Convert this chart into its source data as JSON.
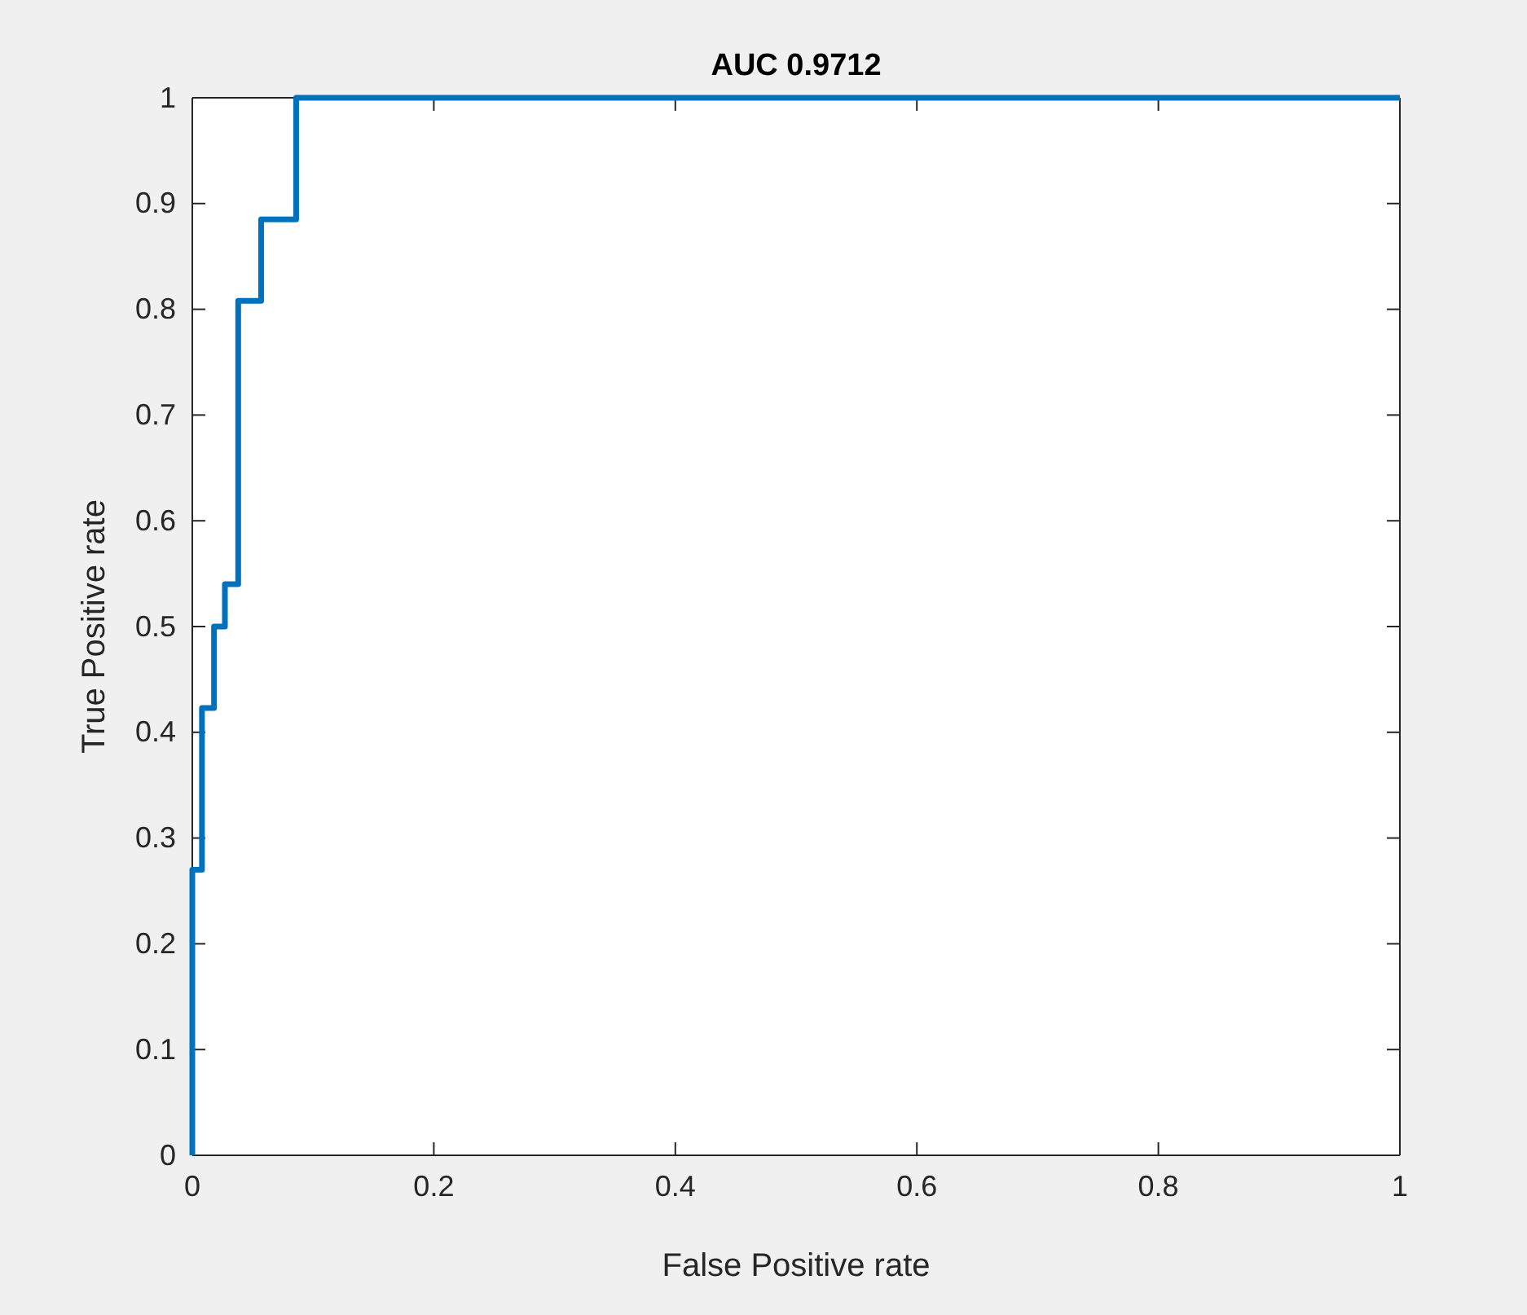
{
  "chart_data": {
    "type": "line",
    "title": "AUC 0.9712",
    "xlabel": "False Positive rate",
    "ylabel": "True Positive rate",
    "x": [
      0,
      0,
      0.008,
      0.008,
      0.018,
      0.018,
      0.027,
      0.027,
      0.038,
      0.038,
      0.057,
      0.057,
      0.086,
      0.086,
      1
    ],
    "series": [
      {
        "color": "#0072bd",
        "values": [
          0,
          0.27,
          0.27,
          0.423,
          0.423,
          0.5,
          0.5,
          0.54,
          0.54,
          0.808,
          0.808,
          0.885,
          0.885,
          1,
          1
        ]
      }
    ],
    "xlim": [
      0,
      1
    ],
    "xticks": [
      0,
      0.2,
      0.4,
      0.6,
      0.8,
      1
    ],
    "ylim": [
      0,
      1
    ],
    "yticks": [
      0,
      0.1,
      0.2,
      0.3,
      0.4,
      0.5,
      0.6,
      0.7,
      0.8,
      0.9,
      1
    ],
    "grid": false,
    "marker": "none",
    "line_style": "solid"
  }
}
